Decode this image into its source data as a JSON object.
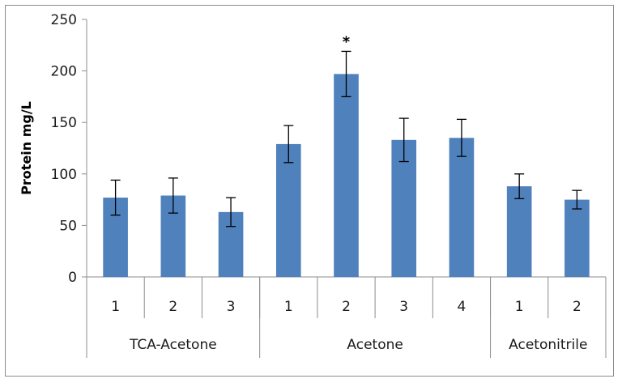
{
  "chart_data": {
    "type": "bar",
    "title": "",
    "ylabel": "Protein mg/L",
    "xlabel": "",
    "ylim": [
      0,
      250
    ],
    "yticks": [
      0,
      50,
      100,
      150,
      200,
      250
    ],
    "grid": false,
    "legend": "none",
    "bar_color": "#4f81bd",
    "groups": [
      {
        "label": "TCA-Acetone",
        "categories": [
          "1",
          "2",
          "3"
        ]
      },
      {
        "label": "Acetone",
        "categories": [
          "1",
          "2",
          "3",
          "4"
        ]
      },
      {
        "label": "Acetonitrile",
        "categories": [
          "1",
          "2"
        ]
      }
    ],
    "categories": [
      "1",
      "2",
      "3",
      "1",
      "2",
      "3",
      "4",
      "1",
      "2"
    ],
    "values": [
      77,
      79,
      63,
      129,
      197,
      133,
      135,
      88,
      75
    ],
    "error_bars": [
      17,
      17,
      14,
      18,
      22,
      21,
      18,
      12,
      9
    ],
    "annotations": [
      {
        "category_index": 4,
        "text": "*"
      }
    ]
  }
}
